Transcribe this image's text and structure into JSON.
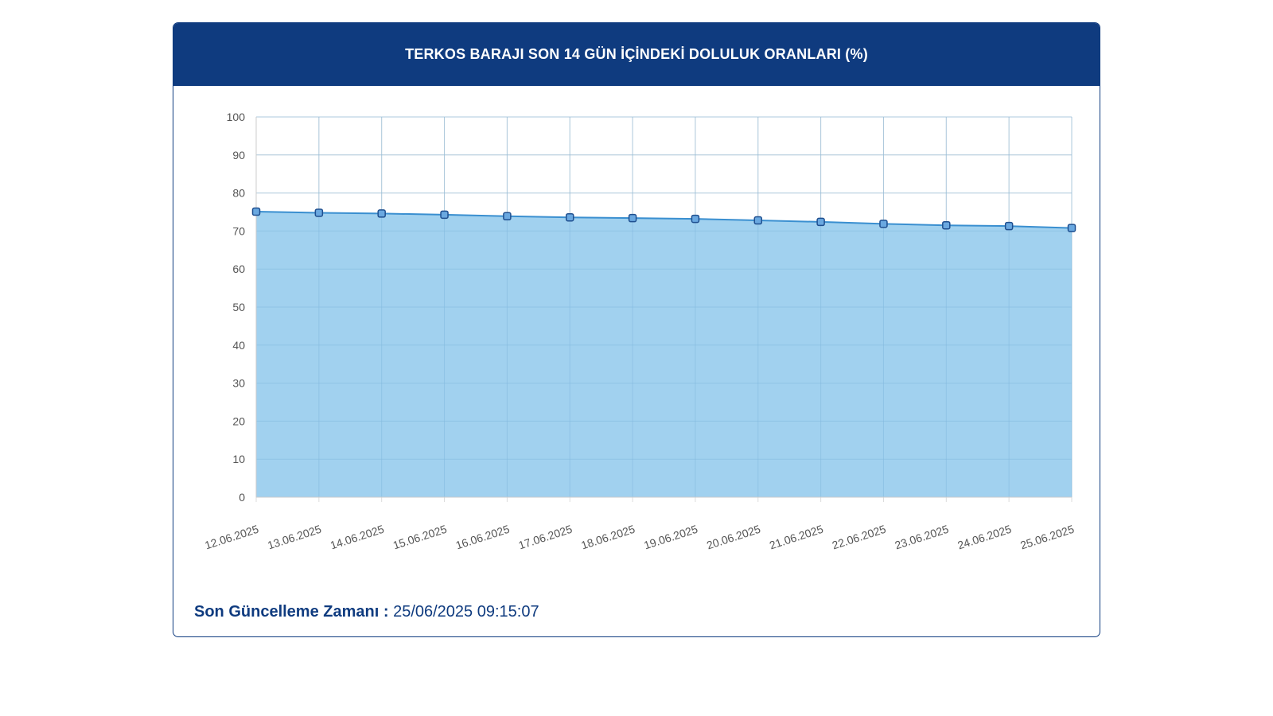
{
  "header": {
    "title": "TERKOS BARAJI SON 14 GÜN İÇİNDEKİ DOLULUK ORANLARI (%)"
  },
  "footer": {
    "label": "Son Güncelleme Zamanı :",
    "value": "25/06/2025 09:15:07"
  },
  "colors": {
    "header_bg": "#0f3b7f",
    "area_fill": "#9ccfee",
    "line": "#3a8fd0",
    "marker_fill": "#6aa8e0",
    "marker_stroke": "#1f4f8f",
    "grid": "#dcdcdc",
    "tick_text": "#555555"
  },
  "chart_data": {
    "type": "area",
    "x": [
      "12.06.2025",
      "13.06.2025",
      "14.06.2025",
      "15.06.2025",
      "16.06.2025",
      "17.06.2025",
      "18.06.2025",
      "19.06.2025",
      "20.06.2025",
      "21.06.2025",
      "22.06.2025",
      "23.06.2025",
      "24.06.2025",
      "25.06.2025"
    ],
    "series": [
      {
        "values": [
          75.1,
          74.8,
          74.6,
          74.3,
          73.9,
          73.6,
          73.4,
          73.2,
          72.8,
          72.4,
          71.9,
          71.5,
          71.3,
          70.8
        ]
      }
    ],
    "ylim": [
      0,
      100
    ],
    "yticks": [
      0,
      10,
      20,
      30,
      40,
      50,
      60,
      70,
      80,
      90,
      100
    ],
    "grid": true,
    "legend": "none"
  }
}
